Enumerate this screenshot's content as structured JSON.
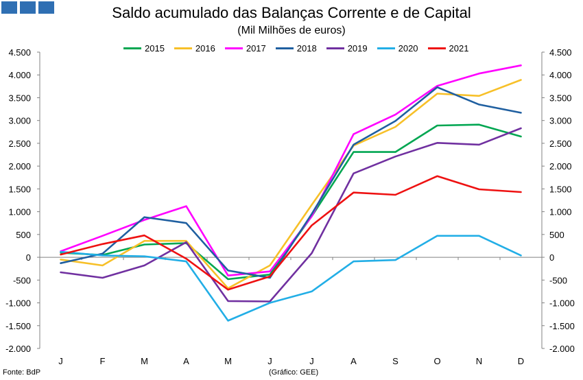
{
  "header": {
    "title": "Saldo acumulado das Balanças Corrente e de Capital",
    "subtitle": "(Mil Milhões de euros)"
  },
  "footer": {
    "source": "Fonte: BdP",
    "credit": "(Gráfico: GEE)"
  },
  "colors": {
    "logo": "#2f6fb3",
    "axis": "#808080"
  },
  "chart_data": {
    "type": "line",
    "title": "Saldo acumulado das Balanças Corrente e de Capital",
    "subtitle": "(Mil Milhões de euros)",
    "categories": [
      "J",
      "F",
      "M",
      "A",
      "M",
      "J",
      "J",
      "A",
      "S",
      "O",
      "N",
      "D"
    ],
    "ylim": [
      -2000,
      4500
    ],
    "yticks": [
      -2000,
      -1500,
      -1000,
      -500,
      0,
      500,
      1000,
      1500,
      2000,
      2500,
      3000,
      3500,
      4000,
      4500
    ],
    "ytick_labels": [
      "-2.000",
      "-1.500",
      "-1.000",
      "-500",
      "0",
      "500",
      "1.000",
      "1.500",
      "2.000",
      "2.500",
      "3.000",
      "3.500",
      "4.000",
      "4.500"
    ],
    "grid": false,
    "legend_position": "top",
    "series": [
      {
        "name": "2015",
        "color": "#00a651",
        "values": [
          100,
          50,
          280,
          310,
          -480,
          -380,
          900,
          2310,
          2310,
          2890,
          2910,
          2650
        ]
      },
      {
        "name": "2016",
        "color": "#f7c028",
        "values": [
          -50,
          -180,
          360,
          360,
          -680,
          -180,
          1150,
          2450,
          2860,
          3590,
          3540,
          3890
        ]
      },
      {
        "name": "2017",
        "color": "#ff00ff",
        "values": [
          130,
          470,
          820,
          1120,
          -400,
          -310,
          900,
          2700,
          3130,
          3760,
          4030,
          4210
        ]
      },
      {
        "name": "2018",
        "color": "#1f5fa0",
        "values": [
          -130,
          80,
          880,
          750,
          -290,
          -450,
          950,
          2470,
          2990,
          3730,
          3350,
          3170
        ]
      },
      {
        "name": "2019",
        "color": "#7030a0",
        "values": [
          -330,
          -450,
          -180,
          330,
          -960,
          -970,
          90,
          1840,
          2210,
          2510,
          2470,
          2830
        ]
      },
      {
        "name": "2020",
        "color": "#22aee6",
        "values": [
          120,
          40,
          20,
          -90,
          -1390,
          -1000,
          -750,
          -90,
          -60,
          470,
          470,
          40
        ]
      },
      {
        "name": "2021",
        "color": "#ee1111",
        "values": [
          60,
          290,
          480,
          -30,
          -710,
          -420,
          700,
          1420,
          1370,
          1780,
          1490,
          1430
        ]
      }
    ]
  }
}
